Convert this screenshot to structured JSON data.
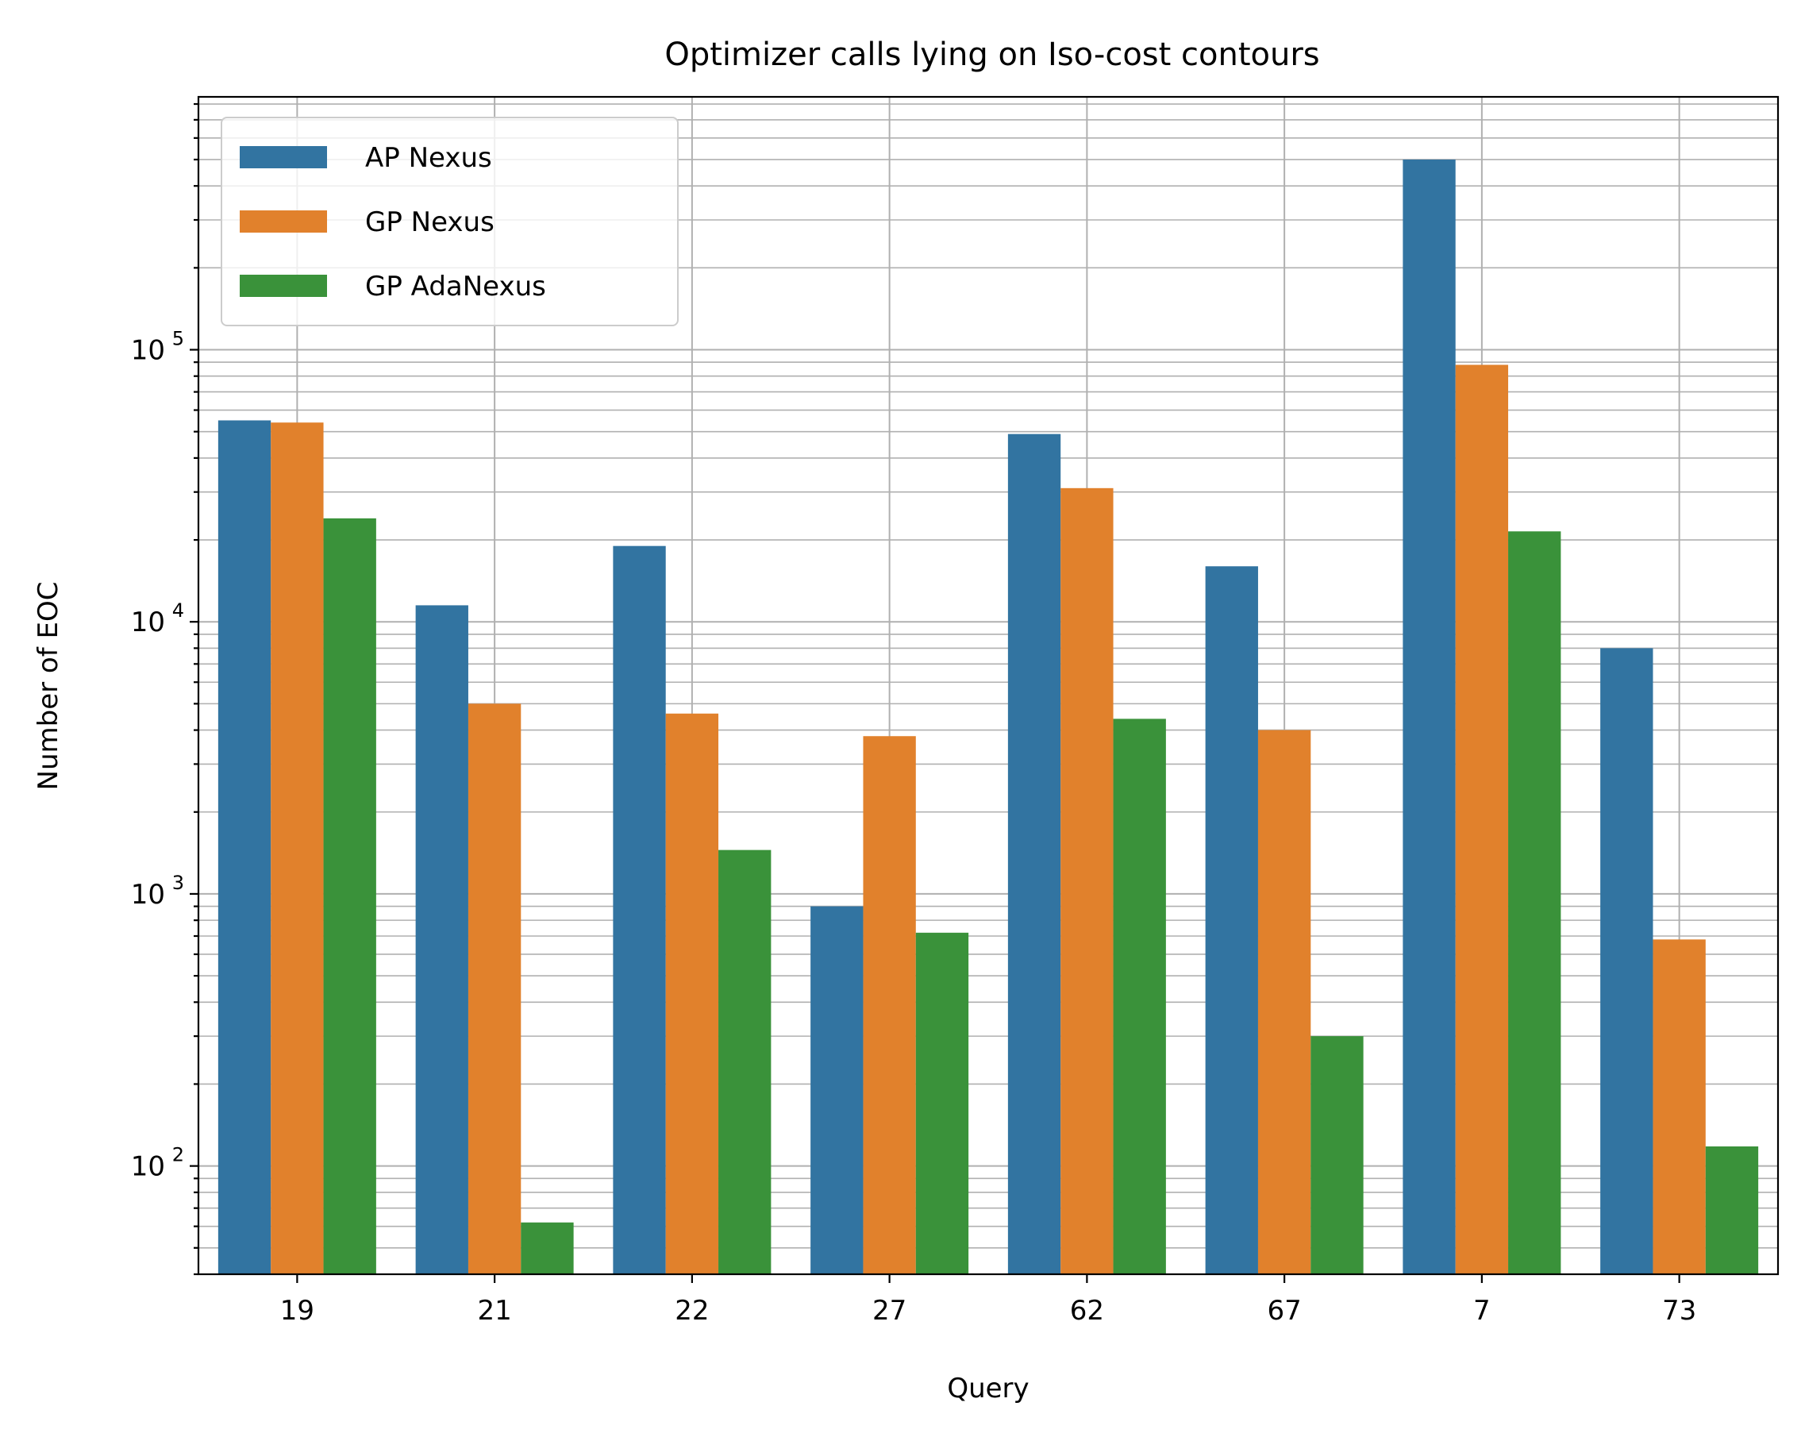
{
  "chart_data": {
    "type": "bar",
    "title": "Optimizer calls lying on Iso-cost contours",
    "xlabel": "Query",
    "ylabel": "Number of EOC",
    "yscale": "log",
    "ylim": [
      40,
      850000
    ],
    "yticks": [
      100,
      1000,
      10000,
      100000
    ],
    "ytick_labels": [
      {
        "base": "10",
        "exp": "2"
      },
      {
        "base": "10",
        "exp": "3"
      },
      {
        "base": "10",
        "exp": "4"
      },
      {
        "base": "10",
        "exp": "5"
      }
    ],
    "grid": "both (major and minor)",
    "legend_position": "top-left",
    "categories": [
      "19",
      "21",
      "22",
      "27",
      "62",
      "67",
      "7",
      "73"
    ],
    "series": [
      {
        "name": "AP Nexus",
        "color": "#3274a1",
        "values": [
          55000,
          11500,
          19000,
          900,
          49000,
          16000,
          500000,
          8000
        ]
      },
      {
        "name": "GP Nexus",
        "color": "#e1812c",
        "values": [
          54000,
          5000,
          4600,
          3800,
          31000,
          4000,
          88000,
          680
        ]
      },
      {
        "name": "GP AdaNexus",
        "color": "#3a923a",
        "values": [
          24000,
          62,
          1450,
          720,
          4400,
          300,
          21500,
          118
        ]
      }
    ]
  }
}
